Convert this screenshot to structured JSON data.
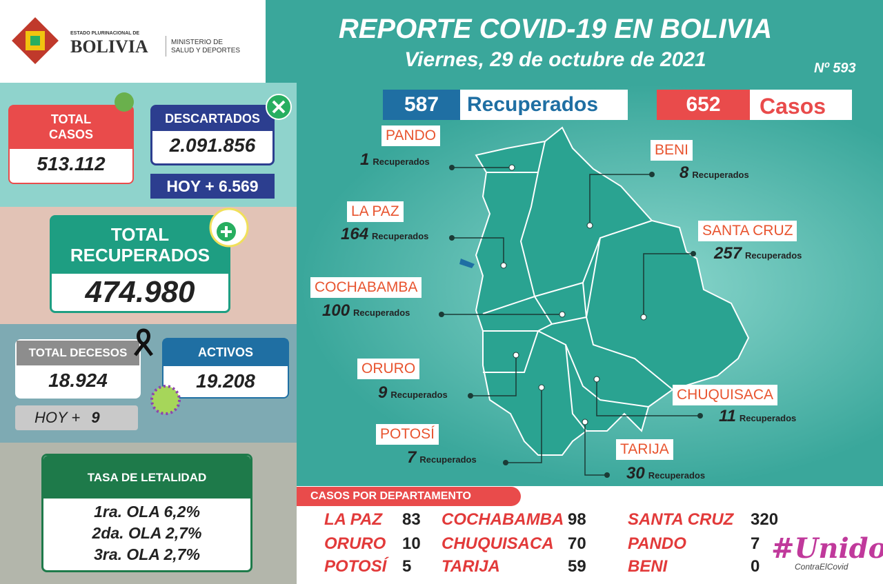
{
  "header": {
    "logo_small": "ESTADO PLURINACIONAL DE",
    "logo_big": "BOLIVIA",
    "ministry_1": "MINISTERIO DE",
    "ministry_2": "SALUD Y DEPORTES",
    "title": "REPORTE COVID-19 EN BOLIVIA",
    "date": "Viernes, 29 de octubre de 2021",
    "number": "Nº 593"
  },
  "summary": {
    "total_casos": {
      "label": "TOTAL CASOS",
      "value": "513.112"
    },
    "descartados": {
      "label": "DESCARTADOS",
      "value": "2.091.856",
      "hoy": "HOY + 6.569"
    },
    "recuperados": {
      "label": "TOTAL RECUPERADOS",
      "value": "474.980"
    },
    "decesos": {
      "label": "TOTAL DECESOS",
      "value": "18.924",
      "hoy_label": "HOY +",
      "hoy_value": "9"
    },
    "activos": {
      "label": "ACTIVOS",
      "value": "19.208"
    },
    "letalidad": {
      "title": "TASA DE LETALIDAD",
      "items": [
        "1ra. OLA 6,2%",
        "2da. OLA 2,7%",
        "3ra. OLA 2,7%"
      ]
    }
  },
  "map": {
    "recuperados": {
      "value": "587",
      "label": "Recuperados"
    },
    "casos": {
      "value": "652",
      "label": "Casos"
    },
    "departments": [
      {
        "name": "PANDO",
        "value": "1",
        "label": "Recuperados"
      },
      {
        "name": "BENI",
        "value": "8",
        "label": "Recuperados"
      },
      {
        "name": "LA PAZ",
        "value": "164",
        "label": "Recuperados"
      },
      {
        "name": "SANTA CRUZ",
        "value": "257",
        "label": "Recuperados"
      },
      {
        "name": "COCHABAMBA",
        "value": "100",
        "label": "Recuperados"
      },
      {
        "name": "ORURO",
        "value": "9",
        "label": "Recuperados"
      },
      {
        "name": "CHUQUISACA",
        "value": "11",
        "label": "Recuperados"
      },
      {
        "name": "POTOSÍ",
        "value": "7",
        "label": "Recuperados"
      },
      {
        "name": "TARIJA",
        "value": "30",
        "label": "Recuperados"
      }
    ]
  },
  "casos_por_departamento": {
    "title": "CASOS POR DEPARTAMENTO",
    "rows": [
      {
        "name": "LA PAZ",
        "value": "83"
      },
      {
        "name": "COCHABAMBA",
        "value": "98"
      },
      {
        "name": "SANTA CRUZ",
        "value": "320"
      },
      {
        "name": "ORURO",
        "value": "10"
      },
      {
        "name": "CHUQUISACA",
        "value": "70"
      },
      {
        "name": "PANDO",
        "value": "7"
      },
      {
        "name": "POTOSÍ",
        "value": "5"
      },
      {
        "name": "TARIJA",
        "value": "59"
      },
      {
        "name": "BENI",
        "value": "0"
      }
    ]
  },
  "campaign": {
    "title": "#Unidos",
    "subtitle": "ContraElCovid"
  }
}
